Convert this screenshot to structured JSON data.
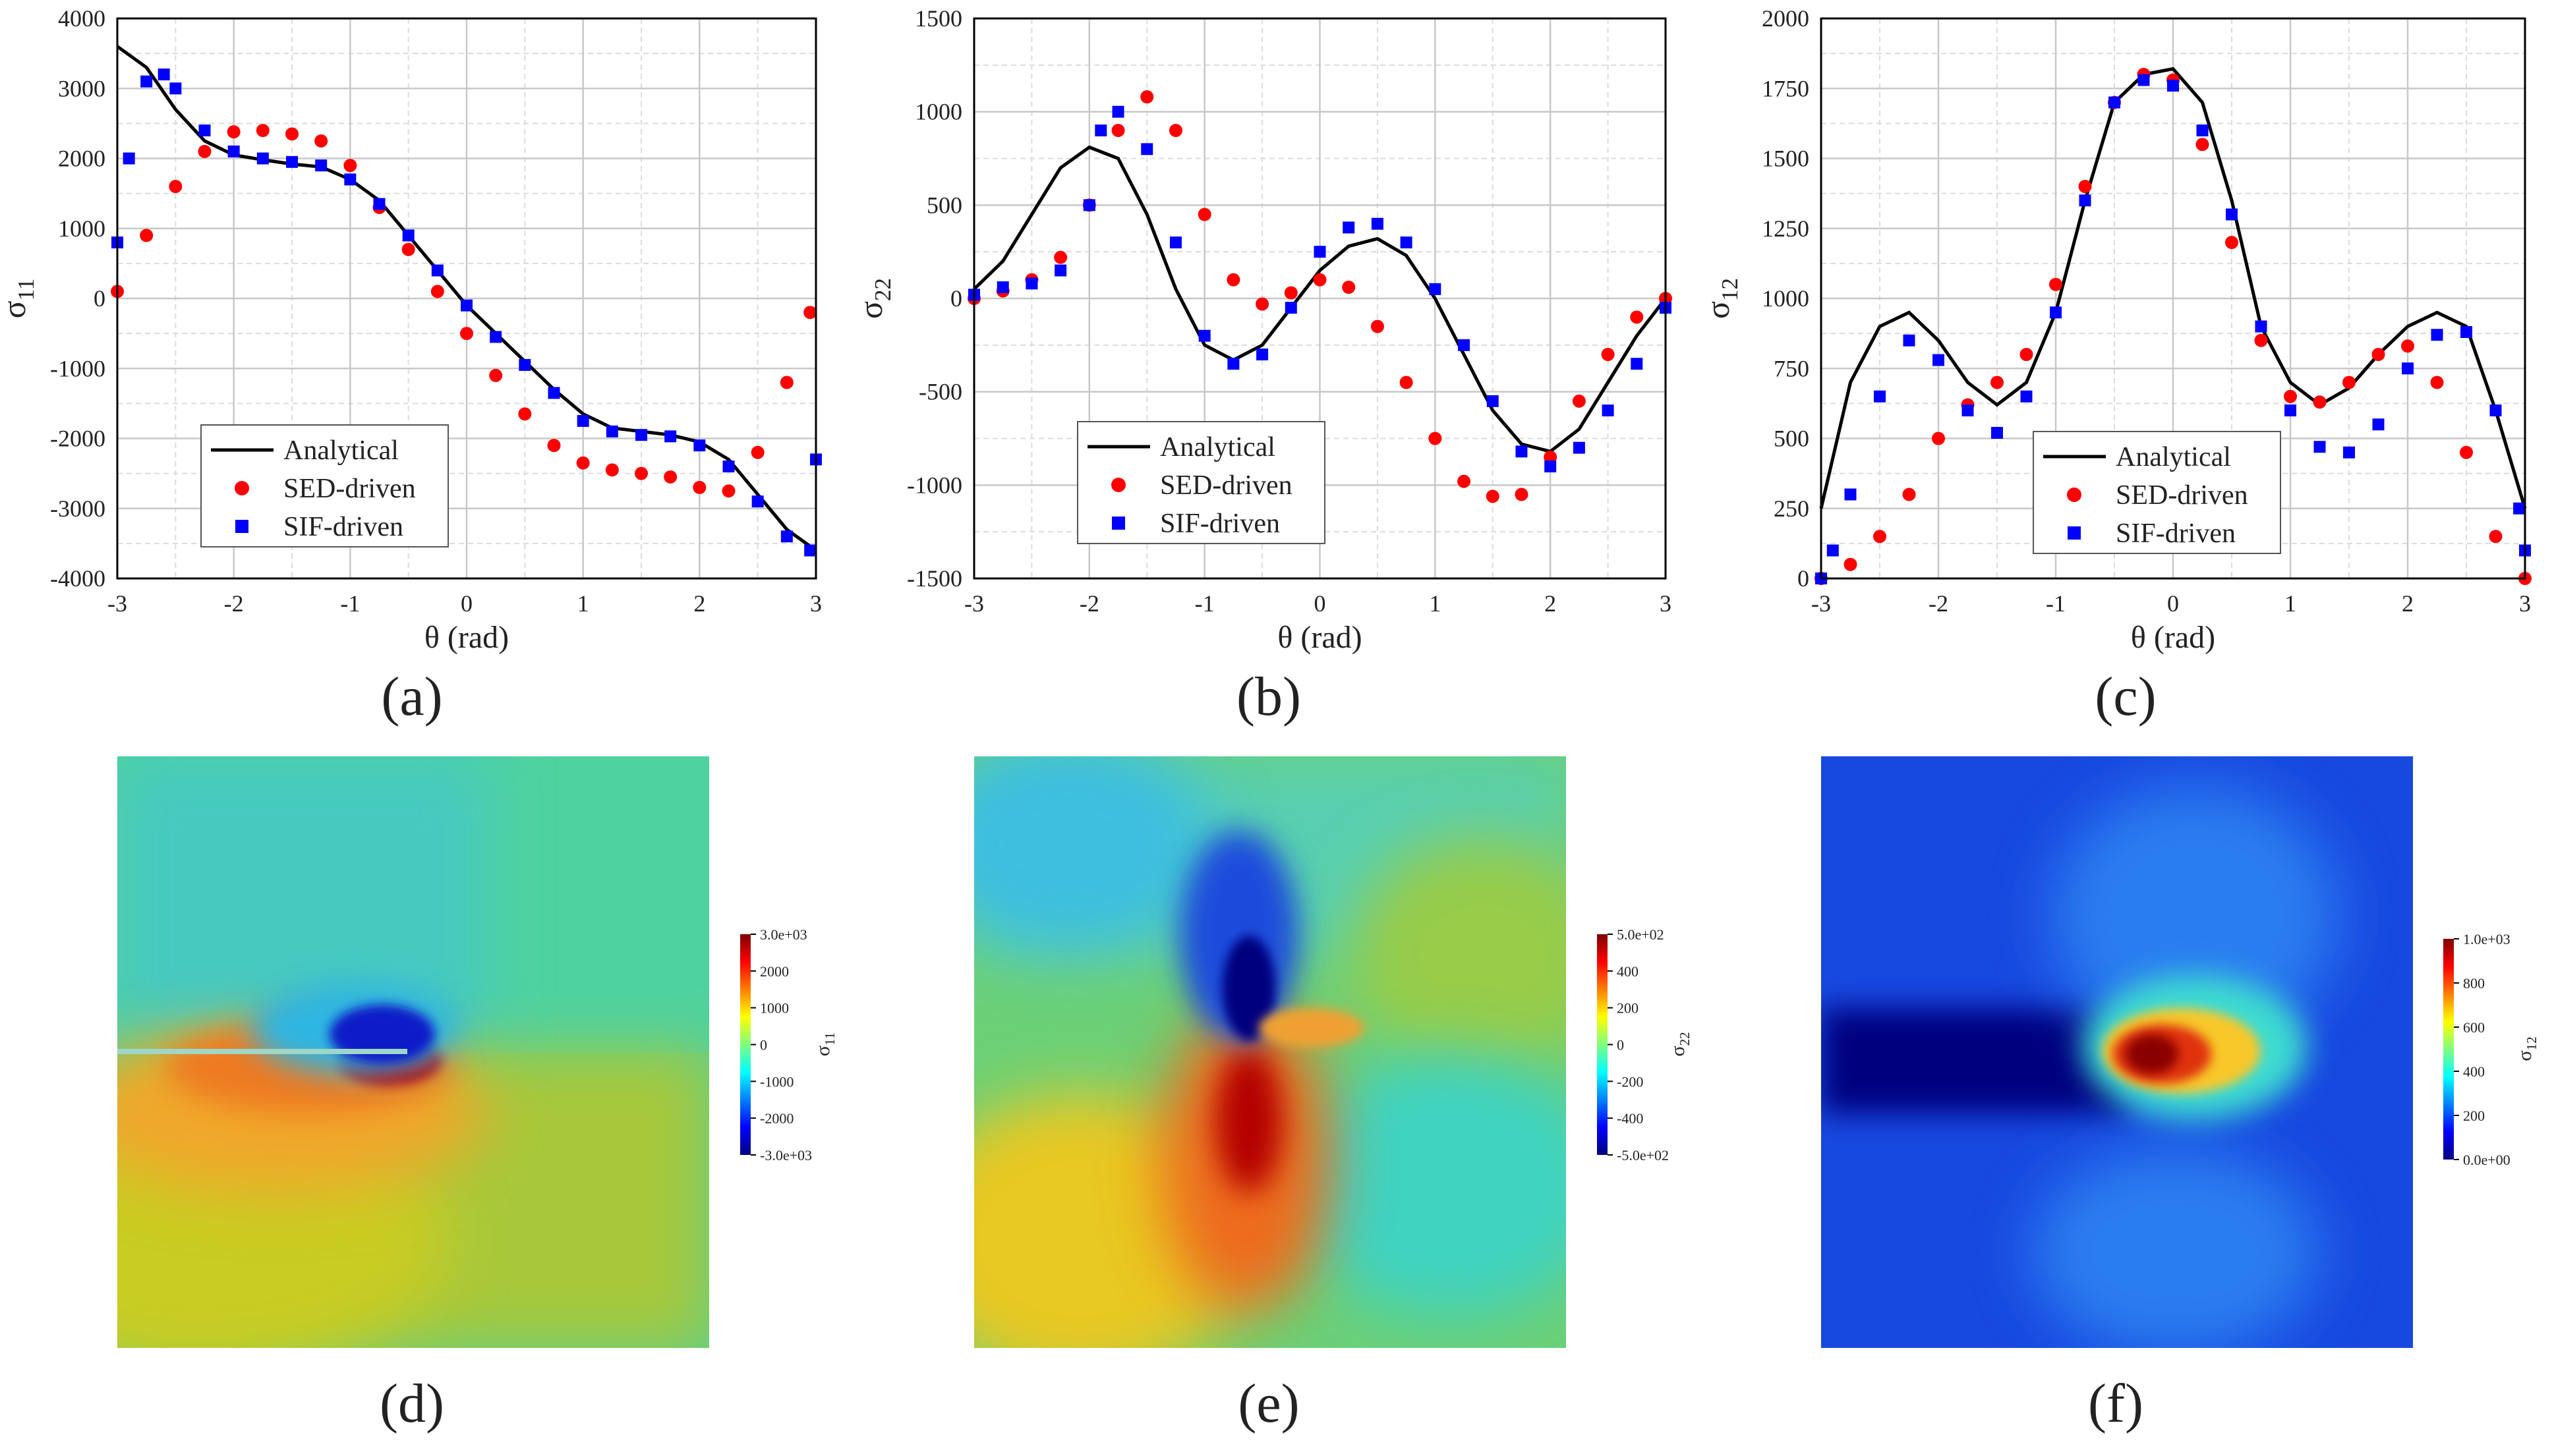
{
  "panel_labels": [
    "(a)",
    "(b)",
    "(c)",
    "(d)",
    "(e)",
    "(f)"
  ],
  "chart_data": [
    {
      "type": "line+scatter",
      "panel": "(a)",
      "xlabel": "θ (rad)",
      "ylabel": "σ11",
      "xlim": [
        -3,
        3
      ],
      "ylim": [
        -4000,
        4000
      ],
      "xticks": [
        -3,
        -2,
        -1,
        0,
        1,
        2,
        3
      ],
      "yticks": [
        -4000,
        -3000,
        -2000,
        -1000,
        0,
        1000,
        2000,
        3000,
        4000
      ],
      "grid": true,
      "legend_position": "lower-left",
      "legend": [
        "Analytical",
        "SED-driven",
        "SIF-driven"
      ],
      "series": [
        {
          "name": "Analytical",
          "style": "line",
          "color": "#000000",
          "x": [
            -3,
            -2.75,
            -2.5,
            -2.25,
            -2,
            -1.75,
            -1.5,
            -1.25,
            -1,
            -0.75,
            -0.5,
            -0.25,
            0,
            0.25,
            0.5,
            0.75,
            1,
            1.25,
            1.5,
            1.75,
            2,
            2.25,
            2.5,
            2.75,
            3
          ],
          "y": [
            3600,
            3300,
            2700,
            2250,
            2050,
            1980,
            1920,
            1880,
            1700,
            1400,
            900,
            400,
            -100,
            -500,
            -900,
            -1300,
            -1650,
            -1850,
            -1900,
            -1950,
            -2050,
            -2300,
            -2800,
            -3300,
            -3600
          ]
        },
        {
          "name": "SED-driven",
          "style": "markers",
          "marker": "circle",
          "color": "#ff0000",
          "x": [
            -3,
            -2.75,
            -2.5,
            -2.25,
            -2,
            -1.75,
            -1.5,
            -1.25,
            -1,
            -0.75,
            -0.5,
            -0.25,
            0,
            0.25,
            0.5,
            0.75,
            1,
            1.25,
            1.5,
            1.75,
            2,
            2.25,
            2.5,
            2.75,
            2.95
          ],
          "y": [
            100,
            900,
            1600,
            2100,
            2380,
            2400,
            2350,
            2250,
            1900,
            1300,
            700,
            100,
            -500,
            -1100,
            -1650,
            -2100,
            -2350,
            -2450,
            -2500,
            -2550,
            -2700,
            -2750,
            -2200,
            -1200,
            -200
          ]
        },
        {
          "name": "SIF-driven",
          "style": "markers",
          "marker": "square",
          "color": "#0000ff",
          "x": [
            -3,
            -2.9,
            -2.75,
            -2.6,
            -2.5,
            -2.25,
            -2,
            -1.75,
            -1.5,
            -1.25,
            -1,
            -0.75,
            -0.5,
            -0.25,
            0,
            0.25,
            0.5,
            0.75,
            1,
            1.25,
            1.5,
            1.75,
            2,
            2.25,
            2.5,
            2.75,
            2.95,
            3
          ],
          "y": [
            800,
            2000,
            3100,
            3200,
            3000,
            2400,
            2100,
            2000,
            1950,
            1900,
            1700,
            1350,
            900,
            400,
            -100,
            -550,
            -950,
            -1350,
            -1750,
            -1900,
            -1950,
            -1970,
            -2100,
            -2400,
            -2900,
            -3400,
            -3600,
            -2300
          ]
        }
      ]
    },
    {
      "type": "line+scatter",
      "panel": "(b)",
      "xlabel": "θ (rad)",
      "ylabel": "σ22",
      "xlim": [
        -3,
        3
      ],
      "ylim": [
        -1500,
        1500
      ],
      "xticks": [
        -3,
        -2,
        -1,
        0,
        1,
        2,
        3
      ],
      "yticks": [
        -1500,
        -1000,
        -500,
        0,
        500,
        1000,
        1500
      ],
      "grid": true,
      "legend_position": "lower-center",
      "legend": [
        "Analytical",
        "SED-driven",
        "SIF-driven"
      ],
      "series": [
        {
          "name": "Analytical",
          "style": "line",
          "color": "#000000",
          "x": [
            -3,
            -2.75,
            -2.5,
            -2.25,
            -2,
            -1.75,
            -1.5,
            -1.25,
            -1,
            -0.75,
            -0.5,
            -0.25,
            0,
            0.25,
            0.5,
            0.75,
            1,
            1.25,
            1.5,
            1.75,
            2,
            2.25,
            2.5,
            2.75,
            3
          ],
          "y": [
            50,
            200,
            450,
            700,
            810,
            750,
            450,
            50,
            -250,
            -330,
            -250,
            -50,
            150,
            280,
            320,
            230,
            0,
            -300,
            -600,
            -780,
            -820,
            -700,
            -450,
            -200,
            0
          ]
        },
        {
          "name": "SED-driven",
          "style": "markers",
          "marker": "circle",
          "color": "#ff0000",
          "x": [
            -3,
            -2.75,
            -2.5,
            -2.25,
            -2,
            -1.75,
            -1.5,
            -1.25,
            -1,
            -0.75,
            -0.5,
            -0.25,
            0,
            0.25,
            0.5,
            0.75,
            1,
            1.25,
            1.5,
            1.75,
            2,
            2.25,
            2.5,
            2.75,
            3
          ],
          "y": [
            0,
            40,
            100,
            220,
            500,
            900,
            1080,
            900,
            450,
            100,
            -30,
            30,
            100,
            60,
            -150,
            -450,
            -750,
            -980,
            -1060,
            -1050,
            -850,
            -550,
            -300,
            -100,
            0
          ]
        },
        {
          "name": "SIF-driven",
          "style": "markers",
          "marker": "square",
          "color": "#0000ff",
          "x": [
            -3,
            -2.75,
            -2.5,
            -2.25,
            -2,
            -1.9,
            -1.75,
            -1.5,
            -1.25,
            -1,
            -0.75,
            -0.5,
            -0.25,
            0,
            0.25,
            0.5,
            0.75,
            1,
            1.25,
            1.5,
            1.75,
            2,
            2.25,
            2.5,
            2.75,
            3
          ],
          "y": [
            20,
            60,
            80,
            150,
            500,
            900,
            1000,
            800,
            300,
            -200,
            -350,
            -300,
            -50,
            250,
            380,
            400,
            300,
            50,
            -250,
            -550,
            -820,
            -900,
            -800,
            -600,
            -350,
            -50
          ]
        }
      ]
    },
    {
      "type": "line+scatter",
      "panel": "(c)",
      "xlabel": "θ (rad)",
      "ylabel": "σ12",
      "xlim": [
        -3,
        3
      ],
      "ylim": [
        0,
        2000
      ],
      "xticks": [
        -3,
        -2,
        -1,
        0,
        1,
        2,
        3
      ],
      "yticks": [
        0,
        250,
        500,
        750,
        1000,
        1250,
        1500,
        1750,
        2000
      ],
      "grid": true,
      "legend_position": "lower-center",
      "legend": [
        "Analytical",
        "SED-driven",
        "SIF-driven"
      ],
      "series": [
        {
          "name": "Analytical",
          "style": "line",
          "color": "#000000",
          "x": [
            -3,
            -2.75,
            -2.5,
            -2.25,
            -2,
            -1.75,
            -1.5,
            -1.25,
            -1,
            -0.75,
            -0.5,
            -0.25,
            0,
            0.25,
            0.5,
            0.75,
            1,
            1.25,
            1.5,
            1.75,
            2,
            2.25,
            2.5,
            2.75,
            3
          ],
          "y": [
            250,
            700,
            900,
            950,
            850,
            700,
            620,
            700,
            950,
            1350,
            1700,
            1800,
            1820,
            1700,
            1350,
            900,
            700,
            620,
            680,
            800,
            900,
            950,
            900,
            600,
            250
          ]
        },
        {
          "name": "SED-driven",
          "style": "markers",
          "marker": "circle",
          "color": "#ff0000",
          "x": [
            -3,
            -2.75,
            -2.5,
            -2.25,
            -2,
            -1.75,
            -1.5,
            -1.25,
            -1,
            -0.75,
            -0.5,
            -0.25,
            0,
            0.25,
            0.5,
            0.75,
            1,
            1.25,
            1.5,
            1.75,
            2,
            2.25,
            2.5,
            2.75,
            3
          ],
          "y": [
            0,
            50,
            150,
            300,
            500,
            620,
            700,
            800,
            1050,
            1400,
            1700,
            1800,
            1780,
            1550,
            1200,
            850,
            650,
            630,
            700,
            800,
            830,
            700,
            450,
            150,
            0
          ]
        },
        {
          "name": "SIF-driven",
          "style": "markers",
          "marker": "square",
          "color": "#0000ff",
          "x": [
            -3,
            -2.9,
            -2.75,
            -2.5,
            -2.25,
            -2,
            -1.75,
            -1.5,
            -1.25,
            -1,
            -0.75,
            -0.5,
            -0.25,
            0,
            0.25,
            0.5,
            0.75,
            1,
            1.25,
            1.5,
            1.75,
            2,
            2.25,
            2.5,
            2.75,
            2.95,
            3
          ],
          "y": [
            0,
            100,
            300,
            650,
            850,
            780,
            600,
            520,
            650,
            950,
            1350,
            1700,
            1780,
            1760,
            1600,
            1300,
            900,
            600,
            470,
            450,
            550,
            750,
            870,
            880,
            600,
            250,
            100
          ]
        }
      ]
    },
    {
      "type": "heatmap",
      "panel": "(d)",
      "colorbar_label": "σ11",
      "colorbar_ticks": [
        "3.0e+03",
        "2000",
        "1000",
        "0",
        "-1000",
        "-2000",
        "-3.0e+03"
      ],
      "range": [
        -3000,
        3000
      ]
    },
    {
      "type": "heatmap",
      "panel": "(e)",
      "colorbar_label": "σ22",
      "colorbar_ticks": [
        "5.0e+02",
        "400",
        "200",
        "0",
        "-200",
        "-400",
        "-5.0e+02"
      ],
      "range": [
        -500,
        500
      ]
    },
    {
      "type": "heatmap",
      "panel": "(f)",
      "colorbar_label": "σ12",
      "colorbar_ticks": [
        "1.0e+03",
        "800",
        "600",
        "400",
        "200",
        "0.0e+00"
      ],
      "range": [
        0,
        1000
      ]
    }
  ]
}
